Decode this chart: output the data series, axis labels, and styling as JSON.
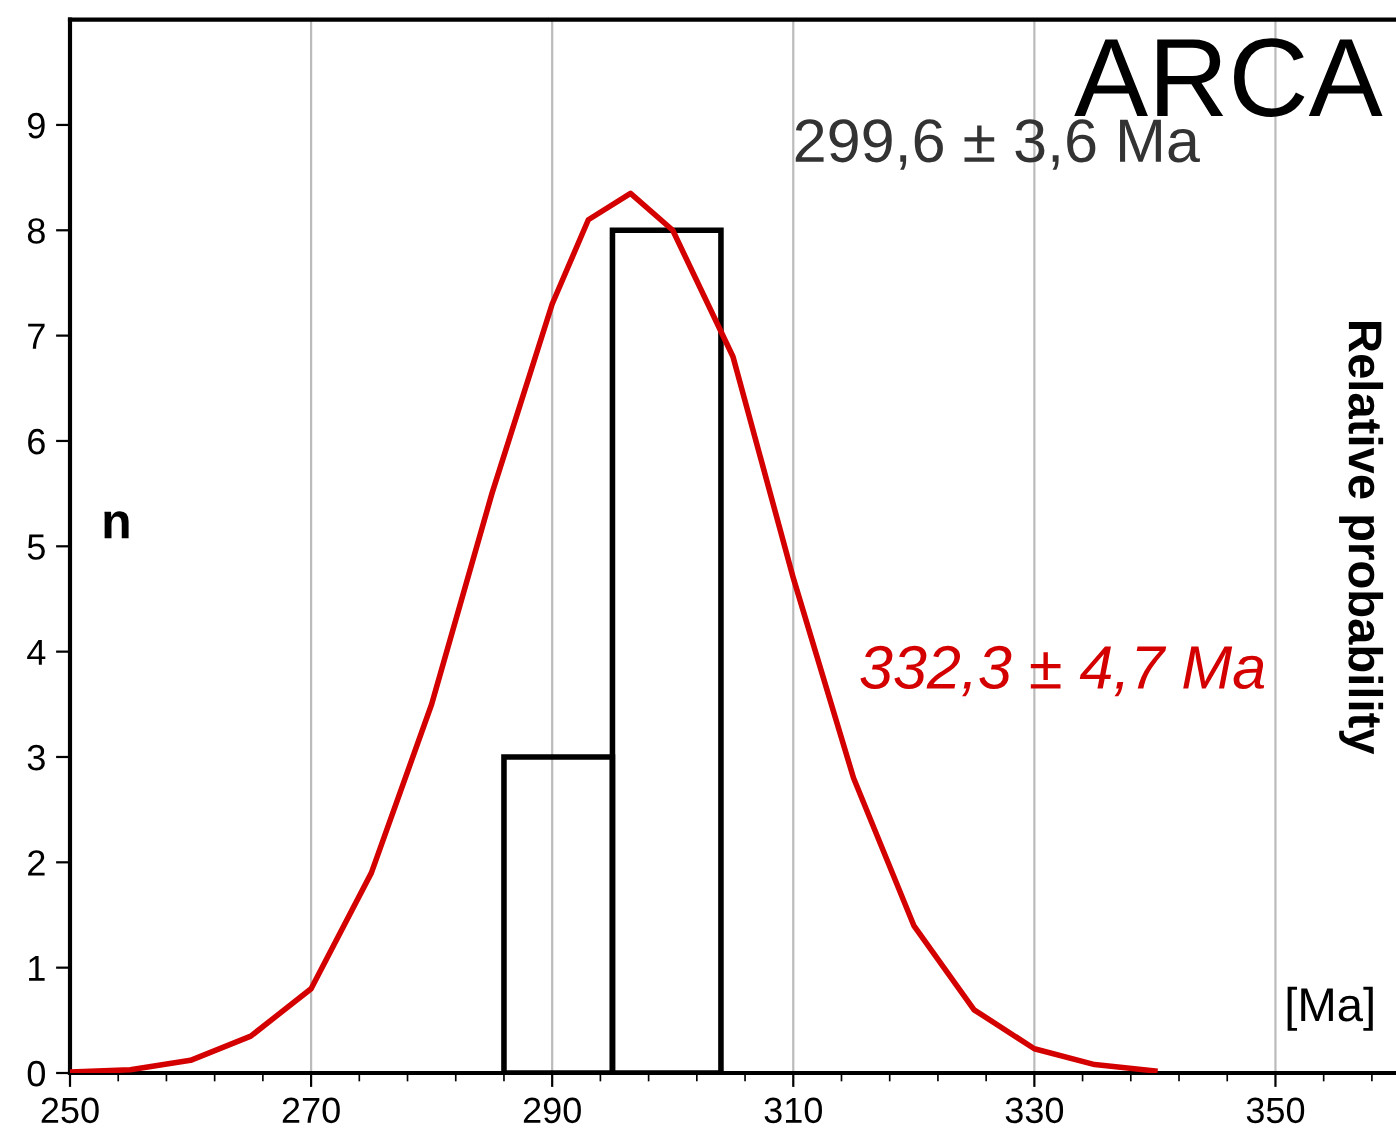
{
  "chart_data": {
    "type": "histogram",
    "title": "ARCA",
    "xlabel": "[Ma]",
    "ylabel": "n",
    "y2label": "Relative probability",
    "bins": [
      286,
      295,
      304
    ],
    "values": [
      3,
      8
    ],
    "color": "#000000",
    "series": [
      {
        "type": "line",
        "color": "#d40000",
        "x": [
          250,
          255,
          260,
          265,
          270,
          275,
          280,
          285,
          290,
          293,
          296.5,
          300,
          305,
          310,
          315,
          320,
          325,
          330,
          335,
          340
        ],
        "values": [
          0.01,
          0.03,
          0.12,
          0.35,
          0.8,
          1.9,
          3.5,
          5.5,
          7.3,
          8.1,
          8.35,
          8.0,
          6.8,
          4.7,
          2.8,
          1.4,
          0.6,
          0.23,
          0.08,
          0.02
        ]
      }
    ],
    "annotations": [
      "299,6 ± 3,6 Ma",
      "332,3 ± 4,7 Ma"
    ],
    "xlim": [
      250,
      360
    ],
    "xticks": [
      250,
      {
        "value": 254,
        "label": null
      },
      {
        "value": 258,
        "label": null
      },
      {
        "value": 262,
        "label": null
      },
      {
        "value": 266,
        "label": null
      },
      270,
      {
        "value": 274,
        "label": null
      },
      {
        "value": 278,
        "label": null
      },
      {
        "value": 282,
        "label": null
      },
      {
        "value": 286,
        "label": null
      },
      290,
      {
        "value": 294,
        "label": null
      },
      {
        "value": 298,
        "label": null
      },
      {
        "value": 302,
        "label": null
      },
      {
        "value": 306,
        "label": null
      },
      310,
      {
        "value": 314,
        "label": null
      },
      {
        "value": 318,
        "label": null
      },
      {
        "value": 322,
        "label": null
      },
      {
        "value": 326,
        "label": null
      },
      330,
      {
        "value": 334,
        "label": null
      },
      {
        "value": 338,
        "label": null
      },
      {
        "value": 342,
        "label": null
      },
      {
        "value": 346,
        "label": null
      },
      350,
      {
        "value": 354,
        "label": null
      },
      {
        "value": 358,
        "label": null
      }
    ],
    "ylim": [
      0,
      10
    ],
    "yticks": [
      0,
      1,
      2,
      3,
      4,
      5,
      6,
      7,
      8,
      9
    ],
    "grid": "x"
  }
}
